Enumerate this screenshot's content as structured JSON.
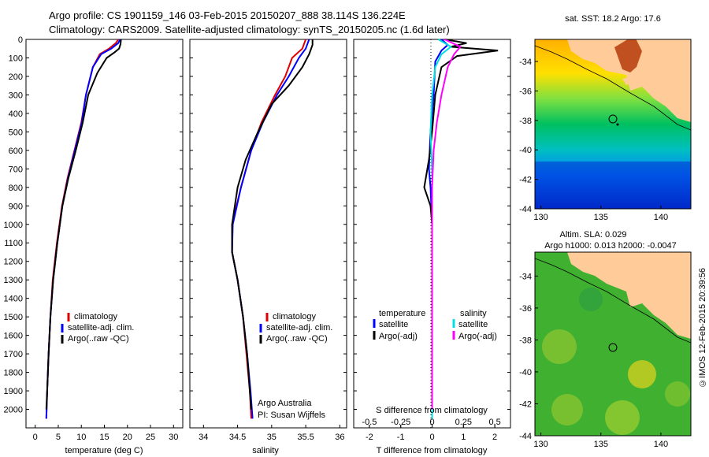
{
  "header": {
    "line1": "Argo profile: CS 1901159_146 03-Feb-2015 20150207_888 38.114S 136.224E",
    "line2": "Climatology: CARS2009. Satellite-adjusted climatology: synTS_20150205.nc (1.6d later)"
  },
  "copyright": "©IMOS 12-Feb-2015 20:39:56",
  "colors": {
    "clim": "#e00000",
    "sat": "#0000ff",
    "argo": "#000000",
    "satS": "#00e0e0",
    "argoS": "#ff00ff"
  },
  "chart_data": [
    {
      "type": "line",
      "xlabel": "temperature (deg C)",
      "xticks": [
        "0",
        "5",
        "10",
        "15",
        "20",
        "25",
        "30"
      ],
      "xlim": [
        -2,
        32
      ],
      "ylim": [
        2100,
        0
      ],
      "yticks": [
        "0",
        "100",
        "200",
        "300",
        "400",
        "500",
        "600",
        "700",
        "800",
        "900",
        "1000",
        "1100",
        "1200",
        "1300",
        "1400",
        "1500",
        "1600",
        "1700",
        "1800",
        "1900",
        "2000"
      ],
      "legend": [
        "climatology",
        "satellite-adj. clim.",
        "Argo(..raw -QC)"
      ],
      "series": [
        {
          "name": "climatology",
          "color": "clim",
          "points": [
            [
              18,
              0
            ],
            [
              17.5,
              20
            ],
            [
              16,
              50
            ],
            [
              14,
              80
            ],
            [
              12.5,
              150
            ],
            [
              11,
              300
            ],
            [
              10,
              450
            ],
            [
              8.5,
              600
            ],
            [
              7,
              750
            ],
            [
              5.8,
              900
            ],
            [
              4.7,
              1100
            ],
            [
              3.8,
              1300
            ],
            [
              3.3,
              1500
            ],
            [
              2.9,
              1700
            ],
            [
              2.6,
              1900
            ],
            [
              2.4,
              2050
            ]
          ]
        },
        {
          "name": "satellite-adj. clim.",
          "color": "sat",
          "points": [
            [
              18.4,
              0
            ],
            [
              18,
              20
            ],
            [
              16.5,
              50
            ],
            [
              14.3,
              80
            ],
            [
              12.5,
              150
            ],
            [
              11,
              300
            ],
            [
              10.1,
              450
            ],
            [
              8.6,
              600
            ],
            [
              7.1,
              750
            ],
            [
              5.9,
              900
            ],
            [
              4.8,
              1100
            ],
            [
              3.9,
              1300
            ],
            [
              3.3,
              1500
            ],
            [
              2.9,
              1700
            ],
            [
              2.6,
              1900
            ],
            [
              2.4,
              2050
            ]
          ]
        },
        {
          "name": "Argo(..raw -QC)",
          "color": "argo",
          "points": [
            [
              18.6,
              0
            ],
            [
              18.5,
              25
            ],
            [
              18.2,
              50
            ],
            [
              17.2,
              70
            ],
            [
              15.5,
              100
            ],
            [
              13.5,
              180
            ],
            [
              11.5,
              300
            ],
            [
              10.3,
              450
            ],
            [
              8.8,
              600
            ],
            [
              7.2,
              750
            ],
            [
              5.9,
              900
            ],
            [
              4.8,
              1100
            ],
            [
              3.9,
              1300
            ],
            [
              3.3,
              1500
            ],
            [
              2.9,
              1700
            ],
            [
              2.6,
              1900
            ],
            [
              2.4,
              2000
            ]
          ]
        }
      ]
    },
    {
      "type": "line",
      "xlabel": "salinity",
      "xticks": [
        "34",
        "34.5",
        "35",
        "35.5",
        "36"
      ],
      "xlim": [
        33.8,
        36.1
      ],
      "ylim": [
        2100,
        0
      ],
      "legend": [
        "climatology",
        "satellite-adj. clim.",
        "Argo(..raw -QC)"
      ],
      "annotation": [
        "Argo Australia",
        "PI: Susan Wijffels"
      ],
      "series": [
        {
          "name": "climatology",
          "color": "clim",
          "points": [
            [
              35.5,
              0
            ],
            [
              35.45,
              50
            ],
            [
              35.3,
              100
            ],
            [
              35.2,
              200
            ],
            [
              35.05,
              300
            ],
            [
              34.85,
              450
            ],
            [
              34.7,
              600
            ],
            [
              34.55,
              800
            ],
            [
              34.42,
              1000
            ],
            [
              34.42,
              1150
            ],
            [
              34.5,
              1300
            ],
            [
              34.58,
              1500
            ],
            [
              34.63,
              1700
            ],
            [
              34.68,
              1900
            ],
            [
              34.7,
              2050
            ]
          ]
        },
        {
          "name": "satellite-adj. clim.",
          "color": "sat",
          "points": [
            [
              35.55,
              0
            ],
            [
              35.5,
              50
            ],
            [
              35.4,
              100
            ],
            [
              35.25,
              200
            ],
            [
              35.08,
              300
            ],
            [
              34.87,
              450
            ],
            [
              34.7,
              600
            ],
            [
              34.55,
              800
            ],
            [
              34.43,
              1000
            ],
            [
              34.42,
              1150
            ],
            [
              34.5,
              1300
            ],
            [
              34.58,
              1500
            ],
            [
              34.64,
              1700
            ],
            [
              34.69,
              1900
            ],
            [
              34.72,
              2050
            ]
          ]
        },
        {
          "name": "Argo(..raw -QC)",
          "color": "argo",
          "points": [
            [
              35.6,
              0
            ],
            [
              35.6,
              30
            ],
            [
              35.55,
              80
            ],
            [
              35.45,
              150
            ],
            [
              35.25,
              250
            ],
            [
              35.0,
              350
            ],
            [
              34.8,
              500
            ],
            [
              34.62,
              650
            ],
            [
              34.5,
              800
            ],
            [
              34.42,
              1000
            ],
            [
              34.42,
              1150
            ],
            [
              34.5,
              1300
            ],
            [
              34.58,
              1500
            ],
            [
              34.64,
              1700
            ],
            [
              34.68,
              1900
            ],
            [
              34.7,
              2000
            ]
          ]
        }
      ]
    },
    {
      "type": "line",
      "xlabel": "T difference from climatology",
      "x2label": "S difference from climatology",
      "xticks": [
        "-2",
        "-1",
        "0",
        "1",
        "2"
      ],
      "x2ticks": [
        "-0.5",
        "-0.25",
        "0",
        "0.25",
        "0.5"
      ],
      "xlim": [
        -2.5,
        2.5
      ],
      "ylim": [
        2100,
        0
      ],
      "legend_t": {
        "head": "temperature",
        "items": [
          "satellite",
          "Argo(-adj)"
        ]
      },
      "legend_s": {
        "head": "salinity",
        "items": [
          "satellite",
          "Argo(-adj)"
        ]
      },
      "series": [
        {
          "name": "T satellite",
          "color": "sat",
          "points": [
            [
              0.3,
              0
            ],
            [
              0.5,
              30
            ],
            [
              0.3,
              60
            ],
            [
              0.1,
              120
            ],
            [
              0.05,
              300
            ],
            [
              -0.05,
              500
            ],
            [
              -0.1,
              700
            ],
            [
              -0.05,
              800
            ],
            [
              0,
              1000
            ],
            [
              0,
              1500
            ],
            [
              0,
              2050
            ]
          ]
        },
        {
          "name": "T Argo(-adj)",
          "color": "argo",
          "points": [
            [
              0.4,
              0
            ],
            [
              1.1,
              20
            ],
            [
              0.6,
              40
            ],
            [
              2.1,
              60
            ],
            [
              0.8,
              90
            ],
            [
              0.3,
              150
            ],
            [
              0.1,
              300
            ],
            [
              0.0,
              500
            ],
            [
              -0.1,
              650
            ],
            [
              -0.25,
              800
            ],
            [
              -0.05,
              900
            ],
            [
              0,
              1000
            ],
            [
              0,
              1500
            ],
            [
              0,
              2000
            ]
          ]
        },
        {
          "name": "S satellite",
          "color": "satS",
          "points": [
            [
              0.2,
              0
            ],
            [
              0.6,
              40
            ],
            [
              0.3,
              80
            ],
            [
              0.1,
              150
            ],
            [
              0.0,
              300
            ],
            [
              -0.05,
              500
            ],
            [
              0,
              700
            ],
            [
              0,
              1000
            ],
            [
              0,
              1500
            ],
            [
              0,
              2050
            ]
          ]
        },
        {
          "name": "S Argo(-adj)",
          "color": "argoS",
          "points": [
            [
              0.4,
              0
            ],
            [
              0.9,
              40
            ],
            [
              0.7,
              80
            ],
            [
              0.5,
              150
            ],
            [
              0.3,
              300
            ],
            [
              0.15,
              450
            ],
            [
              0.05,
              600
            ],
            [
              0,
              800
            ],
            [
              0,
              1000
            ],
            [
              0,
              1500
            ],
            [
              0,
              2000
            ]
          ]
        }
      ]
    },
    {
      "type": "heatmap",
      "title": "sat. SST: 18.2 Argo: 17.6",
      "xticks": [
        "130",
        "135",
        "140"
      ],
      "yticks": [
        "-34",
        "-36",
        "-38",
        "-40",
        "-42",
        "-44"
      ],
      "xlim": [
        129.5,
        142.5
      ],
      "ylim": [
        -44,
        -32.5
      ]
    },
    {
      "type": "heatmap",
      "title": "Altim. SLA: 0.029",
      "subtitle": "Argo h1000: 0.013 h2000: -0.0047",
      "xticks": [
        "130",
        "135",
        "140"
      ],
      "yticks": [
        "-34",
        "-36",
        "-38",
        "-40",
        "-42",
        "-44"
      ],
      "xlim": [
        129.5,
        142.5
      ],
      "ylim": [
        -44,
        -32.5
      ]
    }
  ]
}
